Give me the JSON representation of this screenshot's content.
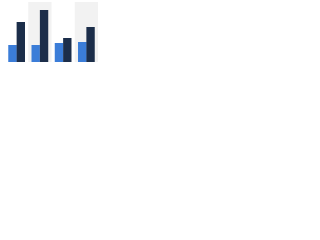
{
  "chart_data": {
    "type": "bar",
    "categories": [
      null,
      null,
      null,
      null
    ],
    "series": [
      {
        "color": "#3b7dd8",
        "values": [
          17,
          17,
          19,
          20
        ]
      },
      {
        "color": "#1c2e4a",
        "values": [
          40,
          52,
          24,
          35
        ]
      }
    ],
    "ylim": [
      0,
      60
    ]
  }
}
